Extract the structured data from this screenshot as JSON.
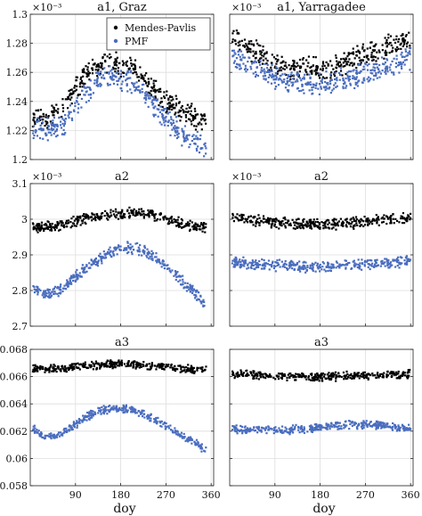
{
  "xlabel": "doy",
  "colors": {
    "mendes": "#000000",
    "pmf": "#4a6dbf"
  },
  "legend": {
    "placement": "top-right",
    "entries": [
      "Mendes-Pavlis",
      "PMF"
    ]
  },
  "chart_data": [
    {
      "id": "a1-graz",
      "type": "scatter",
      "title": "a1, Graz",
      "exponent": "×10⁻³",
      "xlim": [
        0,
        365
      ],
      "ylim": [
        1.2,
        1.3
      ],
      "yticks": [
        1.2,
        1.22,
        1.24,
        1.26,
        1.28,
        1.3
      ],
      "ytick_labels": [
        "1.2",
        "1.22",
        "1.24",
        "1.26",
        "1.28",
        "1.3"
      ],
      "xticks": [
        90,
        180,
        270,
        360
      ],
      "xtick_labels": [],
      "grid": true,
      "legend": true,
      "series": [
        {
          "name": "Mendes-Pavlis",
          "x": [
            5,
            30,
            60,
            90,
            120,
            150,
            180,
            210,
            240,
            270,
            300,
            330,
            350
          ],
          "y": [
            1.231,
            1.228,
            1.234,
            1.249,
            1.262,
            1.268,
            1.264,
            1.262,
            1.25,
            1.24,
            1.235,
            1.228,
            1.224
          ]
        },
        {
          "name": "PMF",
          "x": [
            5,
            30,
            60,
            90,
            120,
            150,
            180,
            210,
            240,
            270,
            300,
            330,
            350
          ],
          "y": [
            1.222,
            1.221,
            1.222,
            1.236,
            1.25,
            1.258,
            1.256,
            1.252,
            1.24,
            1.228,
            1.218,
            1.212,
            1.208
          ]
        }
      ]
    },
    {
      "id": "a1-yarragadee",
      "type": "scatter",
      "title": "a1, Yarragadee",
      "exponent": "×10⁻³",
      "xlim": [
        0,
        365
      ],
      "ylim": [
        1.2,
        1.3
      ],
      "yticks": [
        1.2,
        1.22,
        1.24,
        1.26,
        1.28,
        1.3
      ],
      "ytick_labels": [],
      "xticks": [
        90,
        180,
        270,
        360
      ],
      "xtick_labels": [],
      "grid": true,
      "legend": false,
      "series": [
        {
          "name": "Mendes-Pavlis",
          "x": [
            5,
            30,
            60,
            90,
            120,
            150,
            180,
            210,
            240,
            270,
            300,
            330,
            360
          ],
          "y": [
            1.284,
            1.278,
            1.272,
            1.264,
            1.262,
            1.264,
            1.262,
            1.264,
            1.268,
            1.272,
            1.276,
            1.28,
            1.282
          ]
        },
        {
          "name": "PMF",
          "x": [
            5,
            30,
            60,
            90,
            120,
            150,
            180,
            210,
            240,
            270,
            300,
            330,
            360
          ],
          "y": [
            1.272,
            1.268,
            1.262,
            1.256,
            1.254,
            1.252,
            1.252,
            1.254,
            1.256,
            1.26,
            1.262,
            1.266,
            1.27
          ]
        }
      ]
    },
    {
      "id": "a2-graz",
      "type": "scatter",
      "title": "a2",
      "exponent": "×10⁻³",
      "xlim": [
        0,
        365
      ],
      "ylim": [
        2.7,
        3.1
      ],
      "yticks": [
        2.7,
        2.8,
        2.9,
        3.0,
        3.1
      ],
      "ytick_labels": [
        "2.7",
        "2.8",
        "2.9",
        "3",
        "3.1"
      ],
      "xticks": [
        90,
        180,
        270,
        360
      ],
      "xtick_labels": [],
      "grid": true,
      "legend": false,
      "series": [
        {
          "name": "Mendes-Pavlis",
          "x": [
            5,
            30,
            60,
            90,
            120,
            150,
            180,
            210,
            240,
            270,
            300,
            330,
            350
          ],
          "y": [
            2.978,
            2.977,
            2.982,
            2.995,
            3.005,
            3.01,
            3.015,
            3.018,
            3.012,
            3.002,
            2.99,
            2.98,
            2.975
          ]
        },
        {
          "name": "PMF",
          "x": [
            5,
            30,
            60,
            90,
            120,
            150,
            180,
            210,
            240,
            270,
            300,
            330,
            350
          ],
          "y": [
            2.81,
            2.79,
            2.8,
            2.84,
            2.87,
            2.9,
            2.92,
            2.92,
            2.9,
            2.87,
            2.83,
            2.79,
            2.75
          ]
        }
      ]
    },
    {
      "id": "a2-yarragadee",
      "type": "scatter",
      "title": "a2",
      "exponent": "×10⁻³",
      "xlim": [
        0,
        365
      ],
      "ylim": [
        2.7,
        3.1
      ],
      "yticks": [
        2.7,
        2.8,
        2.9,
        3.0,
        3.1
      ],
      "ytick_labels": [],
      "xticks": [
        90,
        180,
        270,
        360
      ],
      "xtick_labels": [],
      "grid": true,
      "legend": false,
      "series": [
        {
          "name": "Mendes-Pavlis",
          "x": [
            5,
            30,
            60,
            90,
            120,
            150,
            180,
            210,
            240,
            270,
            300,
            330,
            360
          ],
          "y": [
            3.005,
            3.0,
            2.995,
            2.99,
            2.988,
            2.986,
            2.986,
            2.988,
            2.99,
            2.992,
            2.996,
            3.0,
            3.004
          ]
        },
        {
          "name": "PMF",
          "x": [
            5,
            30,
            60,
            90,
            120,
            150,
            180,
            210,
            240,
            270,
            300,
            330,
            360
          ],
          "y": [
            2.88,
            2.875,
            2.872,
            2.87,
            2.868,
            2.866,
            2.866,
            2.868,
            2.87,
            2.874,
            2.876,
            2.88,
            2.884
          ]
        }
      ]
    },
    {
      "id": "a3-graz",
      "type": "scatter",
      "title": "a3",
      "xlim": [
        0,
        365
      ],
      "ylim": [
        0.058,
        0.068
      ],
      "yticks": [
        0.058,
        0.06,
        0.062,
        0.064,
        0.066,
        0.068
      ],
      "ytick_labels": [
        "0.058",
        "0.06",
        "0.062",
        "0.064",
        "0.066",
        "0.068"
      ],
      "xticks": [
        90,
        180,
        270,
        360
      ],
      "xtick_labels": [
        "90",
        "180",
        "270",
        "360"
      ],
      "grid": true,
      "legend": false,
      "series": [
        {
          "name": "Mendes-Pavlis",
          "x": [
            5,
            30,
            60,
            90,
            120,
            150,
            180,
            210,
            240,
            270,
            300,
            330,
            350
          ],
          "y": [
            0.06655,
            0.06655,
            0.0666,
            0.0667,
            0.0668,
            0.0669,
            0.0669,
            0.0669,
            0.0668,
            0.0667,
            0.0666,
            0.06655,
            0.0665
          ]
        },
        {
          "name": "PMF",
          "x": [
            5,
            30,
            60,
            90,
            120,
            150,
            180,
            210,
            240,
            270,
            300,
            330,
            350
          ],
          "y": [
            0.0622,
            0.0615,
            0.0618,
            0.0625,
            0.0632,
            0.0636,
            0.0637,
            0.0635,
            0.063,
            0.0624,
            0.0617,
            0.0611,
            0.0605
          ]
        }
      ]
    },
    {
      "id": "a3-yarragadee",
      "type": "scatter",
      "title": "a3",
      "xlim": [
        0,
        365
      ],
      "ylim": [
        0.058,
        0.068
      ],
      "yticks": [
        0.058,
        0.06,
        0.062,
        0.064,
        0.066,
        0.068
      ],
      "ytick_labels": [],
      "xticks": [
        90,
        180,
        270,
        360
      ],
      "xtick_labels": [
        "90",
        "180",
        "270",
        "360"
      ],
      "grid": true,
      "legend": false,
      "series": [
        {
          "name": "Mendes-Pavlis",
          "x": [
            5,
            30,
            60,
            90,
            120,
            150,
            180,
            210,
            240,
            270,
            300,
            330,
            360
          ],
          "y": [
            0.0662,
            0.06615,
            0.0661,
            0.06605,
            0.06605,
            0.066,
            0.066,
            0.066,
            0.06605,
            0.0661,
            0.0661,
            0.06615,
            0.0662
          ]
        },
        {
          "name": "PMF",
          "x": [
            5,
            30,
            60,
            90,
            120,
            150,
            180,
            210,
            240,
            270,
            300,
            330,
            360
          ],
          "y": [
            0.0622,
            0.0621,
            0.0621,
            0.062,
            0.0621,
            0.0622,
            0.0623,
            0.0624,
            0.0625,
            0.0625,
            0.0624,
            0.0623,
            0.0622
          ]
        }
      ]
    }
  ]
}
